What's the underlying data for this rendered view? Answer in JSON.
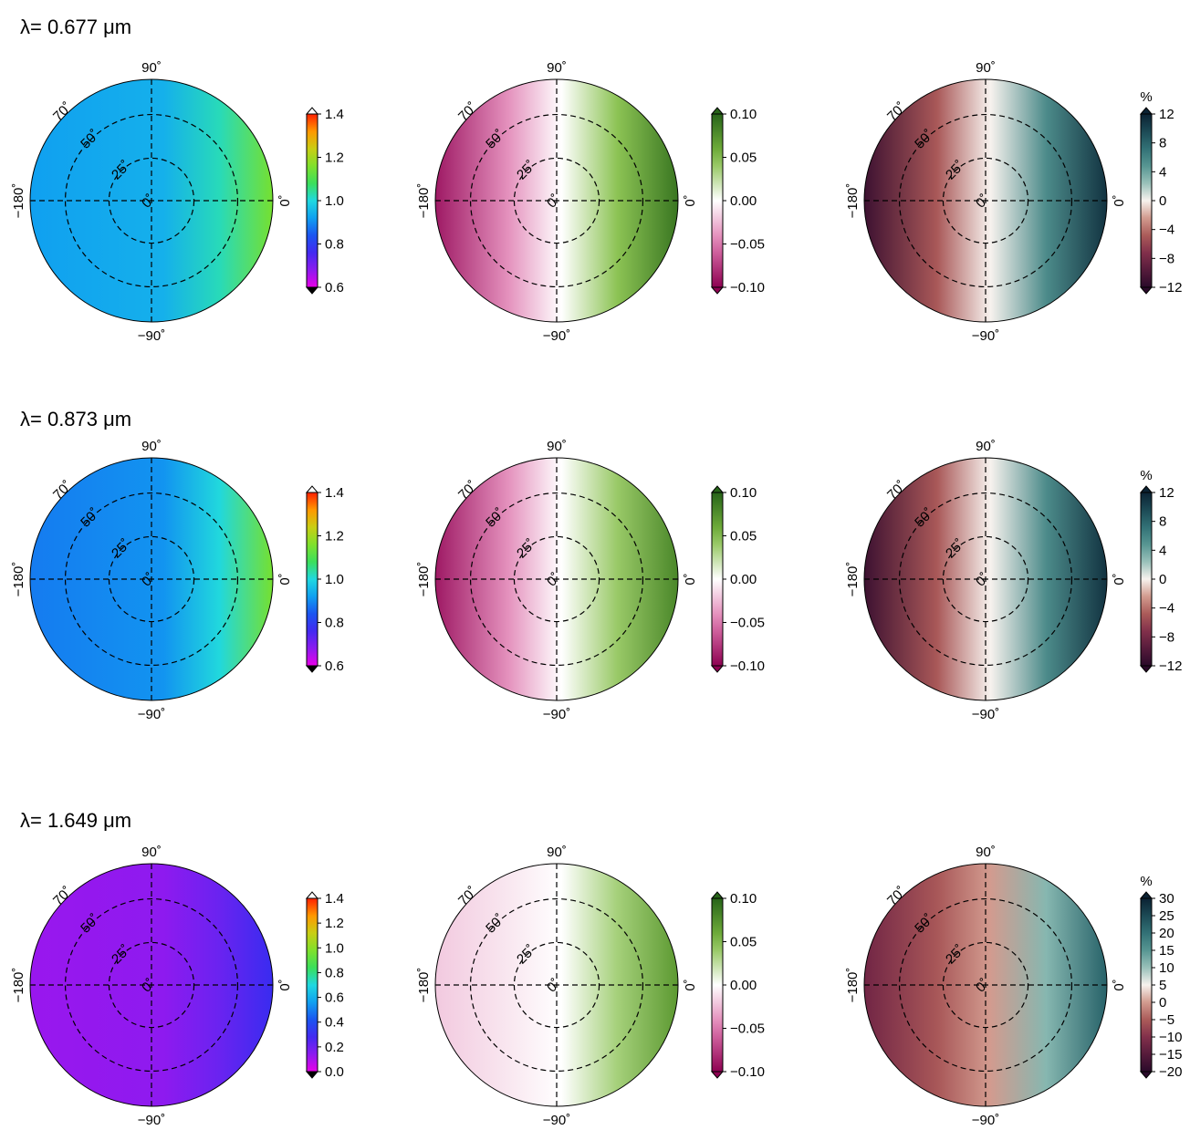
{
  "chart_data": {
    "type": "heatmap",
    "projection": "polar",
    "grid": true,
    "angle_labels": [
      "90˚",
      "0˚",
      "−90˚",
      "−180˚"
    ],
    "ring_labels": [
      "0˚",
      "25˚",
      "50˚",
      "70˚"
    ],
    "rows": [
      {
        "title": "λ= 0.677 μm",
        "panels": [
          {
            "colormap": "spectral",
            "clim": [
              0.6,
              1.4
            ],
            "ticks": [
              "0.6",
              "0.8",
              "1.0",
              "1.2",
              "1.4"
            ],
            "unit": "",
            "base_value": 0.92,
            "east_value": 1.15
          },
          {
            "colormap": "pink-green",
            "clim": [
              -0.1,
              0.1
            ],
            "ticks": [
              "−0.10",
              "−0.05",
              "0.00",
              "0.05",
              "0.10"
            ],
            "unit": "",
            "west_value": -0.09,
            "east_value": 0.09
          },
          {
            "colormap": "red-teal",
            "clim": [
              -12,
              12
            ],
            "ticks": [
              "−12",
              "−8",
              "−4",
              "0",
              "4",
              "8",
              "12"
            ],
            "unit": "%",
            "west_value": -11,
            "east_value": 11
          }
        ]
      },
      {
        "title": "λ= 0.873 μm",
        "panels": [
          {
            "colormap": "spectral",
            "clim": [
              0.6,
              1.4
            ],
            "ticks": [
              "0.6",
              "0.8",
              "1.0",
              "1.2",
              "1.4"
            ],
            "unit": "",
            "base_value": 0.88,
            "east_value": 1.15
          },
          {
            "colormap": "pink-green",
            "clim": [
              -0.1,
              0.1
            ],
            "ticks": [
              "−0.10",
              "−0.05",
              "0.00",
              "0.05",
              "0.10"
            ],
            "unit": "",
            "west_value": -0.09,
            "east_value": 0.08
          },
          {
            "colormap": "red-teal",
            "clim": [
              -12,
              12
            ],
            "ticks": [
              "−12",
              "−8",
              "−4",
              "0",
              "4",
              "8",
              "12"
            ],
            "unit": "%",
            "west_value": -11,
            "east_value": 11
          }
        ]
      },
      {
        "title": "λ= 1.649 μm",
        "panels": [
          {
            "colormap": "spectral",
            "clim": [
              0.0,
              1.4
            ],
            "ticks": [
              "0.0",
              "0.2",
              "0.4",
              "0.6",
              "0.8",
              "1.0",
              "1.2",
              "1.4"
            ],
            "unit": "",
            "base_value": 0.12,
            "east_value": 0.3
          },
          {
            "colormap": "pink-green",
            "clim": [
              -0.1,
              0.1
            ],
            "ticks": [
              "−0.10",
              "−0.05",
              "0.00",
              "0.05",
              "0.10"
            ],
            "unit": "",
            "west_value": -0.02,
            "east_value": 0.07
          },
          {
            "colormap": "red-teal",
            "clim": [
              -20,
              30
            ],
            "ticks": [
              "−20",
              "−15",
              "−10",
              "−5",
              "0",
              "5",
              "10",
              "15",
              "20",
              "25",
              "30"
            ],
            "unit": "%",
            "west_value": -12,
            "east_value": 22
          }
        ]
      }
    ]
  }
}
